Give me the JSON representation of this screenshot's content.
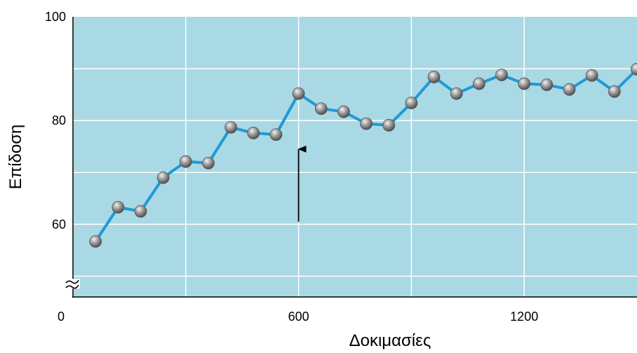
{
  "chart_data": {
    "type": "line",
    "xlabel": "Δοκιμασίες",
    "ylabel": "Επίδοση",
    "xlim": [
      0,
      1500
    ],
    "ylim": [
      46,
      100
    ],
    "y_axis_break": true,
    "xticks": [
      0,
      600,
      1200
    ],
    "yticks": [
      60,
      80,
      100
    ],
    "grid": true,
    "series": [
      {
        "x": [
          60,
          120,
          180,
          240,
          300,
          360,
          420,
          480,
          540,
          600,
          660,
          720,
          780,
          840,
          900,
          960,
          1020,
          1080,
          1140,
          1200,
          1260,
          1320,
          1380,
          1440,
          1500
        ],
        "y": [
          56.7,
          63.3,
          62.5,
          69.0,
          72.1,
          71.8,
          78.7,
          77.6,
          77.3,
          85.2,
          82.3,
          81.7,
          79.4,
          79.1,
          83.4,
          88.4,
          85.2,
          87.1,
          88.8,
          87.1,
          86.9,
          86.0,
          88.7,
          85.6,
          89.9
        ],
        "color": "#1e9ad6"
      }
    ],
    "annotations": [
      {
        "type": "arrow",
        "x": 600,
        "y_from": 60.5,
        "y_to": 74.5
      }
    ],
    "colors": {
      "plot_background": "#a9d9e4",
      "grid": "#ffffff",
      "marker": "#8e8e8e"
    }
  }
}
